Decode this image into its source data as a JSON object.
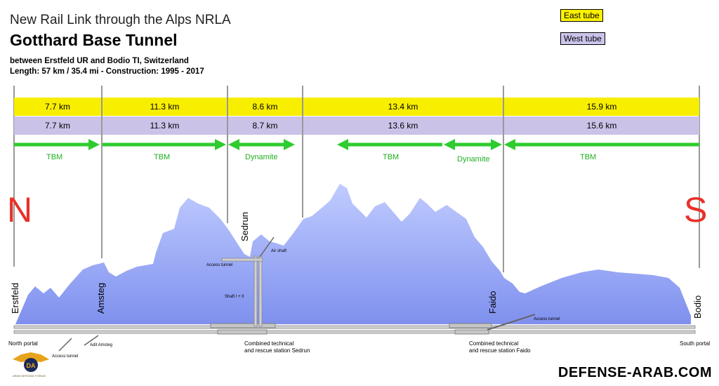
{
  "header": {
    "subtitle": "New Rail Link through the Alps NRLA",
    "title": "Gotthard Base Tunnel",
    "line1": "between Erstfeld UR and Bodio TI, Switzerland",
    "line2": "Length: 57 km / 35.4 mi  -  Construction: 1995 - 2017"
  },
  "legend": {
    "east": "East tube",
    "west": "West tube"
  },
  "compass": {
    "north": "N",
    "south": "S"
  },
  "segments": {
    "east": [
      "7.7 km",
      "11.3 km",
      "8.6 km",
      "13.4 km",
      "15.9 km"
    ],
    "west": [
      "7.7 km",
      "11.3 km",
      "8.7 km",
      "13.6 km",
      "15.6 km"
    ]
  },
  "methods": [
    "TBM",
    "TBM",
    "Dynamite",
    "TBM",
    "Dynamite",
    "TBM"
  ],
  "places": {
    "erstfeld": "Erstfeld",
    "amsteg": "Amsteg",
    "sedrun": "Sedrun",
    "faido": "Faido",
    "bodio": "Bodio"
  },
  "structures": {
    "access_tunnel_sedrun": "Access tunnel",
    "air_shaft": "Air shaft",
    "shaft": "Shaft I + II",
    "access_tunnel_faido": "Access tunnel",
    "adit_amsteg": "Adit Amsteg",
    "access_tunnel_north": "Access tunnel"
  },
  "bottom": {
    "north_portal": "North portal",
    "sedrun_station_1": "Combined technical",
    "sedrun_station_2": "and rescue station Sedrun",
    "faido_station_1": "Combined technical",
    "faido_station_2": "and rescue station Faido",
    "south_portal": "South portal"
  },
  "branding": {
    "site": "DEFENSE-ARAB.COM",
    "forum": "ARAB DEFENSE FORUM"
  },
  "colors": {
    "east_tube": "#f8ee00",
    "west_tube": "#cbc2e8",
    "arrows": "#2ecc2e",
    "compass": "#e8312a",
    "mountain_top": "#b6c4ff",
    "mountain_bottom": "#8093f0"
  }
}
